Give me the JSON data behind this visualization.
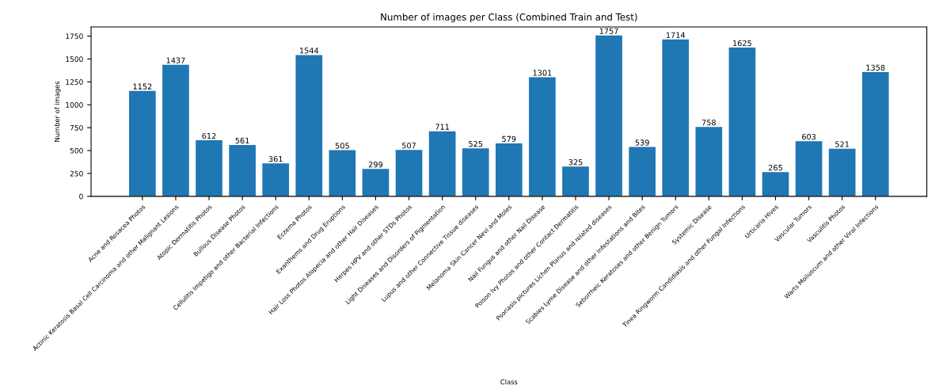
{
  "chart_data": {
    "type": "bar",
    "title": "Number of images per Class (Combined Train and Test)",
    "xlabel": "Class",
    "ylabel": "Number of images",
    "categories": [
      "Acne and Rosacea Photos",
      "Actinic Keratosis Basal Cell Carcinoma and other Malignant Lesions",
      "Atopic Dermatitis Photos",
      "Bullous Disease Photos",
      "Cellulitis Impetigo and other Bacterial Infections",
      "Eczema Photos",
      "Exanthems and Drug Eruptions",
      "Hair Loss Photos Alopecia and other Hair Diseases",
      "Herpes HPV and other STDs Photos",
      "Light Diseases and Disorders of Pigmentation",
      "Lupus and other Connective Tissue diseases",
      "Melanoma Skin Cancer Nevi and Moles",
      "Nail Fungus and other Nail Disease",
      "Poison Ivy Photos and other Contact Dermatitis",
      "Psoriasis pictures Lichen Planus and related diseases",
      "Scabies Lyme Disease and other Infestations and Bites",
      "Seborrheic Keratoses and other Benign Tumors",
      "Systemic Disease",
      "Tinea Ringworm Candidiasis and other Fungal Infections",
      "Urticaria Hives",
      "Vascular Tumors",
      "Vasculitis Photos",
      "Warts Molluscum and other Viral Infections"
    ],
    "values": [
      1152,
      1437,
      612,
      561,
      361,
      1544,
      505,
      299,
      507,
      711,
      525,
      579,
      1301,
      325,
      1757,
      539,
      1714,
      758,
      1625,
      265,
      603,
      521,
      1358
    ],
    "color": "#1f77b4",
    "data_labels": true,
    "ylim": [
      0,
      1850
    ],
    "yticks": [
      0,
      250,
      500,
      750,
      1000,
      1250,
      1500,
      1750
    ],
    "grid": false,
    "legend": false
  }
}
